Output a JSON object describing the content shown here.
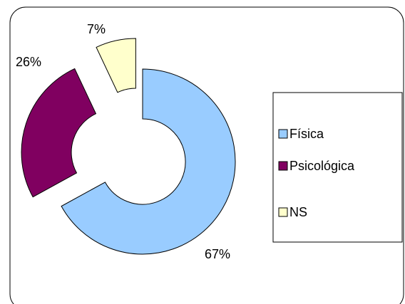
{
  "chart_data": {
    "type": "donut",
    "categories": [
      "Física",
      "Psicológica",
      "NS"
    ],
    "values": [
      67,
      26,
      7
    ],
    "value_labels": [
      "67%",
      "26%",
      "7%"
    ],
    "colors": [
      "#99ccff",
      "#800060",
      "#ffffcc"
    ],
    "legend": "right"
  }
}
